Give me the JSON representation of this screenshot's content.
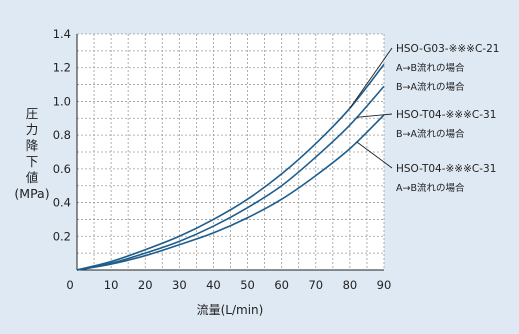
{
  "chart_data": {
    "type": "line",
    "title": "",
    "xlabel": "流量(L/min)",
    "ylabel": {
      "parts": [
        "圧",
        "力",
        "降",
        "下",
        "値"
      ],
      "unit": "(MPa)"
    },
    "xlim": [
      0,
      90
    ],
    "ylim": [
      0,
      1.4
    ],
    "xticks": [
      "10",
      "20",
      "30",
      "40",
      "50",
      "60",
      "70",
      "80",
      "90"
    ],
    "xtick_origin": "0",
    "yticks": [
      "0.2",
      "0.4",
      "0.6",
      "0.8",
      "1.0",
      "1.2",
      "1.4"
    ],
    "grid": true,
    "x": [
      0,
      10,
      20,
      30,
      40,
      50,
      60,
      70,
      80,
      90
    ],
    "series": [
      {
        "name": "HSO-G03-※※※C-21",
        "label_lines": [
          "HSO-G03-※※※C-21",
          "A→B流れの場合",
          "B→A流れの場合"
        ],
        "values": [
          0,
          0.05,
          0.12,
          0.2,
          0.3,
          0.42,
          0.57,
          0.75,
          0.96,
          1.22
        ]
      },
      {
        "name": "HSO-T04-※※※C-31",
        "label_lines": [
          "HSO-T04-※※※C-31",
          "B→A流れの場合"
        ],
        "values": [
          0,
          0.04,
          0.1,
          0.17,
          0.26,
          0.37,
          0.5,
          0.67,
          0.86,
          1.09
        ]
      },
      {
        "name": "HSO-T04-※※※C-31",
        "label_lines": [
          "HSO-T04-※※※C-31",
          "A→B流れの場合"
        ],
        "values": [
          0,
          0.035,
          0.085,
          0.15,
          0.22,
          0.31,
          0.42,
          0.56,
          0.72,
          0.92
        ]
      }
    ],
    "line_color": "#1f5d8c",
    "background_color": "#dfe9f4",
    "plot_background": "#ffffff",
    "grid_color": "#9a9a9a"
  }
}
